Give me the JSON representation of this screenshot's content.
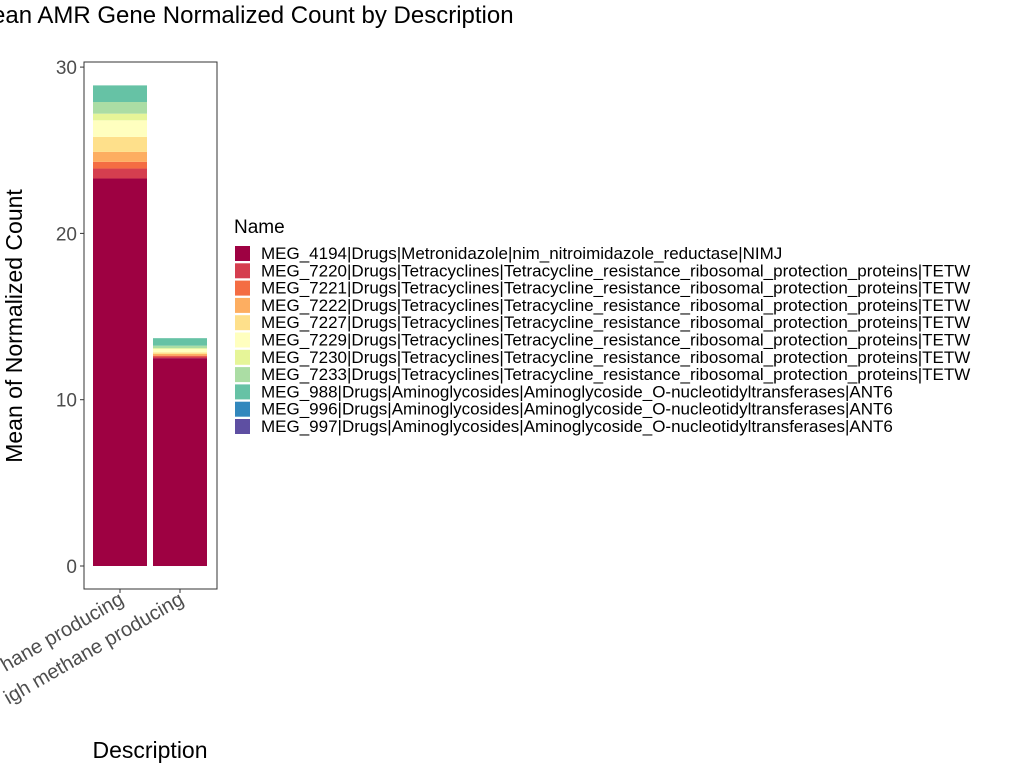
{
  "chart_data": {
    "type": "bar",
    "stacked": true,
    "title": "ean AMR Gene Normalized Count by Description",
    "xlabel": "Description",
    "ylabel": "Mean of Normalized Count",
    "ylim": [
      0,
      30
    ],
    "yticks": [
      0,
      10,
      20,
      30
    ],
    "grid": false,
    "legend_title": "Name",
    "legend_position": "right",
    "categories": [
      "hane producing",
      "igh methane producing"
    ],
    "series": [
      {
        "name": "MEG_4194|Drugs|Metronidazole|nim_nitroimidazole_reductase|NIMJ",
        "color": "#9e0142",
        "values": [
          23.3,
          12.5
        ]
      },
      {
        "name": "MEG_7220|Drugs|Tetracyclines|Tetracycline_resistance_ribosomal_protection_proteins|TETW",
        "color": "#d53e4f",
        "values": [
          0.6,
          0.1
        ]
      },
      {
        "name": "MEG_7221|Drugs|Tetracyclines|Tetracycline_resistance_ribosomal_protection_proteins|TETW",
        "color": "#f46d43",
        "values": [
          0.4,
          0.05
        ]
      },
      {
        "name": "MEG_7222|Drugs|Tetracyclines|Tetracycline_resistance_ribosomal_protection_proteins|TETW",
        "color": "#fdae61",
        "values": [
          0.6,
          0.1
        ]
      },
      {
        "name": "MEG_7227|Drugs|Tetracyclines|Tetracycline_resistance_ribosomal_protection_proteins|TETW",
        "color": "#fee08b",
        "values": [
          0.9,
          0.1
        ]
      },
      {
        "name": "MEG_7229|Drugs|Tetracyclines|Tetracycline_resistance_ribosomal_protection_proteins|TETW",
        "color": "#ffffbf",
        "values": [
          1.0,
          0.2
        ]
      },
      {
        "name": "MEG_7230|Drugs|Tetracyclines|Tetracycline_resistance_ribosomal_protection_proteins|TETW",
        "color": "#e6f598",
        "values": [
          0.4,
          0.05
        ]
      },
      {
        "name": "MEG_7233|Drugs|Tetracyclines|Tetracycline_resistance_ribosomal_protection_proteins|TETW",
        "color": "#abdda4",
        "values": [
          0.7,
          0.15
        ]
      },
      {
        "name": "MEG_988|Drugs|Aminoglycosides|Aminoglycoside_O-nucleotidyltransferases|ANT6",
        "color": "#66c2a5",
        "values": [
          1.0,
          0.45
        ]
      },
      {
        "name": "MEG_996|Drugs|Aminoglycosides|Aminoglycoside_O-nucleotidyltransferases|ANT6",
        "color": "#3288bd",
        "values": [
          0.0,
          0.0
        ]
      },
      {
        "name": "MEG_997|Drugs|Aminoglycosides|Aminoglycoside_O-nucleotidyltransferases|ANT6",
        "color": "#5e4fa2",
        "values": [
          0.0,
          0.0
        ]
      }
    ]
  }
}
